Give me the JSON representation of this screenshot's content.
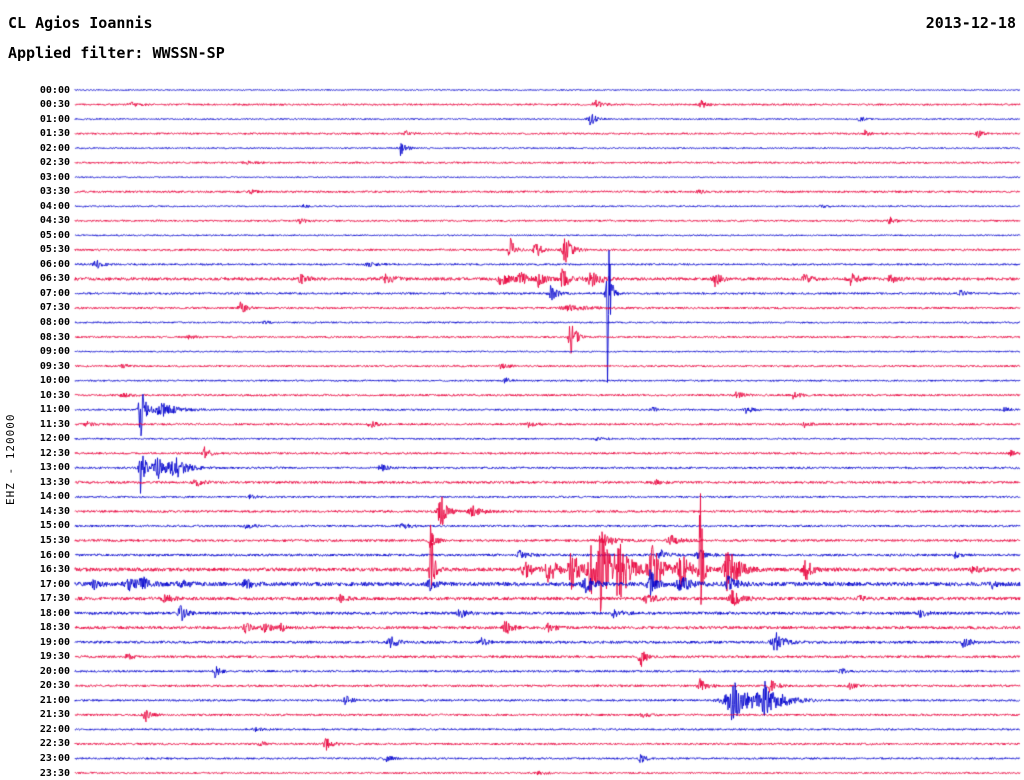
{
  "header": {
    "station_title": "CL Agios Ioannis",
    "date": "2013-12-18",
    "filter_label": "Applied filter: WWSSN-SP"
  },
  "colors": {
    "blue": "#0000cd",
    "red": "#e8003c",
    "text": "#000000",
    "background": "#ffffff"
  },
  "chart_data": {
    "type": "line",
    "title": "CL Agios Ioannis",
    "subtitle": "Applied filter: WWSSN-SP",
    "date": "2013-12-18",
    "ylabel": "EHZ - 120000",
    "row_duration_minutes": 30,
    "x_range": [
      "00:00",
      "24:00"
    ],
    "legend": "off",
    "grid": "off",
    "rows": [
      {
        "time": "00:00",
        "color": "blue",
        "noise": 0.6,
        "events": []
      },
      {
        "time": "00:30",
        "color": "red",
        "noise": 0.9,
        "events": [
          {
            "x": 0.06,
            "amp": 2,
            "decay": 0.008
          },
          {
            "x": 0.55,
            "amp": 5,
            "decay": 0.006
          },
          {
            "x": 0.662,
            "amp": 4.5,
            "decay": 0.005
          }
        ]
      },
      {
        "time": "01:00",
        "color": "blue",
        "noise": 0.7,
        "events": [
          {
            "x": 0.545,
            "amp": 7,
            "decay": 0.006
          },
          {
            "x": 0.83,
            "amp": 3,
            "decay": 0.005
          }
        ]
      },
      {
        "time": "01:30",
        "color": "red",
        "noise": 0.9,
        "events": [
          {
            "x": 0.35,
            "amp": 3,
            "decay": 0.005
          },
          {
            "x": 0.836,
            "amp": 3,
            "decay": 0.004
          },
          {
            "x": 0.955,
            "amp": 5,
            "decay": 0.005
          }
        ]
      },
      {
        "time": "02:00",
        "color": "blue",
        "noise": 0.7,
        "events": [
          {
            "x": 0.344,
            "amp": 8,
            "decay": 0.005
          }
        ]
      },
      {
        "time": "02:30",
        "color": "red",
        "noise": 0.9,
        "events": [
          {
            "x": 0.18,
            "amp": 1.5,
            "decay": 0.01
          }
        ]
      },
      {
        "time": "03:00",
        "color": "blue",
        "noise": 0.6,
        "events": []
      },
      {
        "time": "03:30",
        "color": "red",
        "noise": 1.0,
        "events": [
          {
            "x": 0.185,
            "amp": 2,
            "decay": 0.006
          },
          {
            "x": 0.66,
            "amp": 2,
            "decay": 0.006
          }
        ]
      },
      {
        "time": "04:00",
        "color": "blue",
        "noise": 0.7,
        "events": [
          {
            "x": 0.24,
            "amp": 2,
            "decay": 0.005
          },
          {
            "x": 0.79,
            "amp": 2,
            "decay": 0.005
          }
        ]
      },
      {
        "time": "04:30",
        "color": "red",
        "noise": 0.9,
        "events": [
          {
            "x": 0.238,
            "amp": 3,
            "decay": 0.006
          },
          {
            "x": 0.862,
            "amp": 4,
            "decay": 0.005
          }
        ]
      },
      {
        "time": "05:00",
        "color": "blue",
        "noise": 0.7,
        "events": []
      },
      {
        "time": "05:30",
        "color": "red",
        "noise": 1.0,
        "events": [
          {
            "x": 0.46,
            "amp": 16,
            "decay": 0.004
          },
          {
            "x": 0.487,
            "amp": 14,
            "decay": 0.004
          },
          {
            "x": 0.518,
            "amp": 18,
            "decay": 0.006
          }
        ]
      },
      {
        "time": "06:00",
        "color": "blue",
        "noise": 0.9,
        "events": [
          {
            "x": 0.021,
            "amp": 6,
            "decay": 0.006
          },
          {
            "x": 0.31,
            "amp": 2,
            "decay": 0.01
          }
        ]
      },
      {
        "time": "06:30",
        "color": "red",
        "noise": 1.5,
        "events": [
          {
            "x": 0.238,
            "amp": 6,
            "decay": 0.006
          },
          {
            "x": 0.328,
            "amp": 4,
            "decay": 0.01
          },
          {
            "x": 0.45,
            "amp": 7,
            "decay": 0.008
          },
          {
            "x": 0.47,
            "amp": 9,
            "decay": 0.006
          },
          {
            "x": 0.49,
            "amp": 8,
            "decay": 0.006
          },
          {
            "x": 0.515,
            "amp": 10,
            "decay": 0.008
          },
          {
            "x": 0.545,
            "amp": 9,
            "decay": 0.01
          },
          {
            "x": 0.677,
            "amp": 7,
            "decay": 0.006
          },
          {
            "x": 0.772,
            "amp": 5,
            "decay": 0.006
          },
          {
            "x": 0.82,
            "amp": 6,
            "decay": 0.008
          },
          {
            "x": 0.862,
            "amp": 5,
            "decay": 0.006
          }
        ]
      },
      {
        "time": "07:00",
        "color": "blue",
        "noise": 1.0,
        "events": [
          {
            "x": 0.503,
            "amp": 9,
            "decay": 0.006
          },
          {
            "x": 0.563,
            "amp": 110,
            "decay": 0.0025
          },
          {
            "x": 0.937,
            "amp": 4,
            "decay": 0.005
          }
        ]
      },
      {
        "time": "07:30",
        "color": "red",
        "noise": 1.0,
        "events": [
          {
            "x": 0.175,
            "amp": 7,
            "decay": 0.005
          },
          {
            "x": 0.52,
            "amp": 3,
            "decay": 0.02
          }
        ]
      },
      {
        "time": "08:00",
        "color": "blue",
        "noise": 0.8,
        "events": [
          {
            "x": 0.2,
            "amp": 2,
            "decay": 0.006
          }
        ]
      },
      {
        "time": "08:30",
        "color": "red",
        "noise": 0.9,
        "events": [
          {
            "x": 0.12,
            "amp": 2,
            "decay": 0.006
          },
          {
            "x": 0.524,
            "amp": 30,
            "decay": 0.004
          }
        ]
      },
      {
        "time": "09:00",
        "color": "blue",
        "noise": 0.7,
        "events": []
      },
      {
        "time": "09:30",
        "color": "red",
        "noise": 0.9,
        "events": [
          {
            "x": 0.05,
            "amp": 2,
            "decay": 0.006
          },
          {
            "x": 0.45,
            "amp": 2.5,
            "decay": 0.008
          }
        ]
      },
      {
        "time": "10:00",
        "color": "blue",
        "noise": 0.8,
        "events": [
          {
            "x": 0.455,
            "amp": 3,
            "decay": 0.006
          }
        ]
      },
      {
        "time": "10:30",
        "color": "red",
        "noise": 1.0,
        "events": [
          {
            "x": 0.05,
            "amp": 2,
            "decay": 0.008
          },
          {
            "x": 0.7,
            "amp": 4,
            "decay": 0.006
          },
          {
            "x": 0.76,
            "amp": 4,
            "decay": 0.006
          }
        ]
      },
      {
        "time": "11:00",
        "color": "blue",
        "noise": 0.9,
        "events": [
          {
            "x": 0.069,
            "amp": 38,
            "decay": 0.004
          },
          {
            "x": 0.09,
            "amp": 8,
            "decay": 0.015
          },
          {
            "x": 0.61,
            "amp": 3,
            "decay": 0.005
          },
          {
            "x": 0.71,
            "amp": 5,
            "decay": 0.005
          },
          {
            "x": 0.984,
            "amp": 4,
            "decay": 0.004
          }
        ]
      },
      {
        "time": "11:30",
        "color": "red",
        "noise": 1.0,
        "events": [
          {
            "x": 0.012,
            "amp": 3,
            "decay": 0.005
          },
          {
            "x": 0.312,
            "amp": 4,
            "decay": 0.006
          },
          {
            "x": 0.48,
            "amp": 3,
            "decay": 0.006
          },
          {
            "x": 0.772,
            "amp": 3,
            "decay": 0.005
          }
        ]
      },
      {
        "time": "12:00",
        "color": "blue",
        "noise": 0.8,
        "events": [
          {
            "x": 0.55,
            "amp": 1.5,
            "decay": 0.01
          }
        ]
      },
      {
        "time": "12:30",
        "color": "red",
        "noise": 1.0,
        "events": [
          {
            "x": 0.137,
            "amp": 6,
            "decay": 0.006
          },
          {
            "x": 0.99,
            "amp": 3,
            "decay": 0.004
          }
        ]
      },
      {
        "time": "13:00",
        "color": "blue",
        "noise": 1.0,
        "events": [
          {
            "x": 0.069,
            "amp": 42,
            "decay": 0.003
          },
          {
            "x": 0.085,
            "amp": 14,
            "decay": 0.01
          },
          {
            "x": 0.105,
            "amp": 10,
            "decay": 0.012
          },
          {
            "x": 0.323,
            "amp": 4,
            "decay": 0.006
          }
        ]
      },
      {
        "time": "13:30",
        "color": "red",
        "noise": 1.2,
        "events": [
          {
            "x": 0.127,
            "amp": 5,
            "decay": 0.006
          },
          {
            "x": 0.614,
            "amp": 3,
            "decay": 0.006
          }
        ]
      },
      {
        "time": "14:00",
        "color": "blue",
        "noise": 0.9,
        "events": [
          {
            "x": 0.185,
            "amp": 2,
            "decay": 0.006
          }
        ]
      },
      {
        "time": "14:30",
        "color": "red",
        "noise": 1.1,
        "events": [
          {
            "x": 0.386,
            "amp": 26,
            "decay": 0.005
          },
          {
            "x": 0.42,
            "amp": 6,
            "decay": 0.01
          }
        ]
      },
      {
        "time": "15:00",
        "color": "blue",
        "noise": 1.0,
        "events": [
          {
            "x": 0.18,
            "amp": 4,
            "decay": 0.006
          },
          {
            "x": 0.345,
            "amp": 3,
            "decay": 0.008
          }
        ]
      },
      {
        "time": "15:30",
        "color": "red",
        "noise": 1.2,
        "events": [
          {
            "x": 0.376,
            "amp": 10,
            "decay": 0.005
          },
          {
            "x": 0.561,
            "amp": 7,
            "decay": 0.01
          },
          {
            "x": 0.63,
            "amp": 5,
            "decay": 0.01
          }
        ]
      },
      {
        "time": "16:00",
        "color": "blue",
        "noise": 1.2,
        "events": [
          {
            "x": 0.47,
            "amp": 4,
            "decay": 0.008
          },
          {
            "x": 0.62,
            "amp": 6,
            "decay": 0.008
          },
          {
            "x": 0.66,
            "amp": 5,
            "decay": 0.008
          },
          {
            "x": 0.93,
            "amp": 3,
            "decay": 0.006
          }
        ]
      },
      {
        "time": "16:30",
        "color": "red",
        "noise": 1.8,
        "events": [
          {
            "x": 0.376,
            "amp": 55,
            "decay": 0.003
          },
          {
            "x": 0.475,
            "amp": 12,
            "decay": 0.006
          },
          {
            "x": 0.5,
            "amp": 15,
            "decay": 0.008
          },
          {
            "x": 0.525,
            "amp": 20,
            "decay": 0.008
          },
          {
            "x": 0.545,
            "amp": 30,
            "decay": 0.006
          },
          {
            "x": 0.556,
            "amp": 45,
            "decay": 0.008
          },
          {
            "x": 0.575,
            "amp": 35,
            "decay": 0.01
          },
          {
            "x": 0.61,
            "amp": 25,
            "decay": 0.01
          },
          {
            "x": 0.64,
            "amp": 20,
            "decay": 0.008
          },
          {
            "x": 0.661,
            "amp": 120,
            "decay": 0.0022
          },
          {
            "x": 0.69,
            "amp": 25,
            "decay": 0.01
          },
          {
            "x": 0.772,
            "amp": 14,
            "decay": 0.006
          },
          {
            "x": 0.95,
            "amp": 4,
            "decay": 0.006
          }
        ]
      },
      {
        "time": "17:00",
        "color": "blue",
        "noise": 2.0,
        "events": [
          {
            "x": 0.02,
            "amp": 6,
            "decay": 0.006
          },
          {
            "x": 0.055,
            "amp": 8,
            "decay": 0.008
          },
          {
            "x": 0.07,
            "amp": 7,
            "decay": 0.008
          },
          {
            "x": 0.11,
            "amp": 5,
            "decay": 0.008
          },
          {
            "x": 0.18,
            "amp": 5,
            "decay": 0.006
          },
          {
            "x": 0.375,
            "amp": 6,
            "decay": 0.006
          },
          {
            "x": 0.54,
            "amp": 9,
            "decay": 0.008
          },
          {
            "x": 0.608,
            "amp": 16,
            "decay": 0.006
          },
          {
            "x": 0.64,
            "amp": 8,
            "decay": 0.01
          },
          {
            "x": 0.69,
            "amp": 8,
            "decay": 0.008
          },
          {
            "x": 0.97,
            "amp": 4,
            "decay": 0.006
          }
        ]
      },
      {
        "time": "17:30",
        "color": "red",
        "noise": 1.6,
        "events": [
          {
            "x": 0.095,
            "amp": 5,
            "decay": 0.006
          },
          {
            "x": 0.28,
            "amp": 4,
            "decay": 0.006
          },
          {
            "x": 0.605,
            "amp": 6,
            "decay": 0.008
          },
          {
            "x": 0.695,
            "amp": 8,
            "decay": 0.008
          },
          {
            "x": 0.83,
            "amp": 3,
            "decay": 0.006
          }
        ]
      },
      {
        "time": "18:00",
        "color": "blue",
        "noise": 1.4,
        "events": [
          {
            "x": 0.111,
            "amp": 10,
            "decay": 0.005
          },
          {
            "x": 0.407,
            "amp": 6,
            "decay": 0.006
          },
          {
            "x": 0.57,
            "amp": 4,
            "decay": 0.008
          },
          {
            "x": 0.894,
            "amp": 6,
            "decay": 0.005
          }
        ]
      },
      {
        "time": "18:30",
        "color": "red",
        "noise": 1.4,
        "events": [
          {
            "x": 0.18,
            "amp": 6,
            "decay": 0.005
          },
          {
            "x": 0.2,
            "amp": 8,
            "decay": 0.005
          },
          {
            "x": 0.218,
            "amp": 5,
            "decay": 0.005
          },
          {
            "x": 0.455,
            "amp": 8,
            "decay": 0.006
          },
          {
            "x": 0.5,
            "amp": 4,
            "decay": 0.008
          }
        ]
      },
      {
        "time": "19:00",
        "color": "blue",
        "noise": 1.3,
        "events": [
          {
            "x": 0.333,
            "amp": 10,
            "decay": 0.005
          },
          {
            "x": 0.43,
            "amp": 4,
            "decay": 0.006
          },
          {
            "x": 0.74,
            "amp": 12,
            "decay": 0.008
          },
          {
            "x": 0.94,
            "amp": 6,
            "decay": 0.006
          }
        ]
      },
      {
        "time": "19:30",
        "color": "red",
        "noise": 1.2,
        "events": [
          {
            "x": 0.055,
            "amp": 3,
            "decay": 0.006
          },
          {
            "x": 0.598,
            "amp": 12,
            "decay": 0.005
          }
        ]
      },
      {
        "time": "20:00",
        "color": "blue",
        "noise": 1.0,
        "events": [
          {
            "x": 0.148,
            "amp": 6,
            "decay": 0.005
          },
          {
            "x": 0.81,
            "amp": 3,
            "decay": 0.006
          }
        ]
      },
      {
        "time": "20:30",
        "color": "red",
        "noise": 1.1,
        "events": [
          {
            "x": 0.661,
            "amp": 7,
            "decay": 0.006
          },
          {
            "x": 0.735,
            "amp": 8,
            "decay": 0.006
          },
          {
            "x": 0.82,
            "amp": 3,
            "decay": 0.006
          }
        ]
      },
      {
        "time": "21:00",
        "color": "blue",
        "noise": 1.0,
        "events": [
          {
            "x": 0.286,
            "amp": 5,
            "decay": 0.006
          },
          {
            "x": 0.695,
            "amp": 20,
            "decay": 0.02
          },
          {
            "x": 0.73,
            "amp": 16,
            "decay": 0.015
          }
        ]
      },
      {
        "time": "21:30",
        "color": "red",
        "noise": 1.0,
        "events": [
          {
            "x": 0.074,
            "amp": 8,
            "decay": 0.005
          },
          {
            "x": 0.6,
            "amp": 2,
            "decay": 0.008
          }
        ]
      },
      {
        "time": "22:00",
        "color": "blue",
        "noise": 0.9,
        "events": [
          {
            "x": 0.19,
            "amp": 2,
            "decay": 0.008
          }
        ]
      },
      {
        "time": "22:30",
        "color": "red",
        "noise": 1.0,
        "events": [
          {
            "x": 0.196,
            "amp": 3,
            "decay": 0.005
          },
          {
            "x": 0.265,
            "amp": 7,
            "decay": 0.006
          }
        ]
      },
      {
        "time": "23:00",
        "color": "blue",
        "noise": 0.9,
        "events": [
          {
            "x": 0.328,
            "amp": 5,
            "decay": 0.005
          },
          {
            "x": 0.598,
            "amp": 5,
            "decay": 0.005
          }
        ]
      },
      {
        "time": "23:30",
        "color": "red",
        "noise": 0.8,
        "events": [
          {
            "x": 0.49,
            "amp": 2,
            "decay": 0.008
          }
        ]
      }
    ]
  }
}
